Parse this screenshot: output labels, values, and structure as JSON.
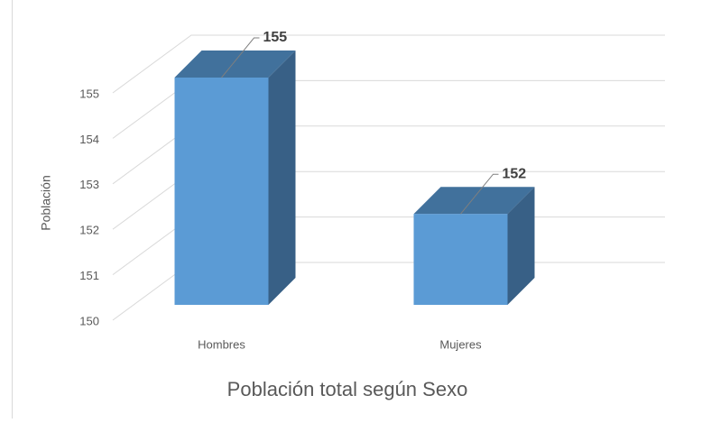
{
  "chart_data": {
    "type": "bar3d",
    "title": "Población total según Sexo",
    "y_label": "Población",
    "categories": [
      "Hombres",
      "Mujeres"
    ],
    "values": [
      155,
      152
    ],
    "color": "#5b9bd5",
    "ylim": [
      150,
      155
    ],
    "yticks": [
      150,
      151,
      152,
      153,
      154,
      155
    ],
    "grid": true
  }
}
